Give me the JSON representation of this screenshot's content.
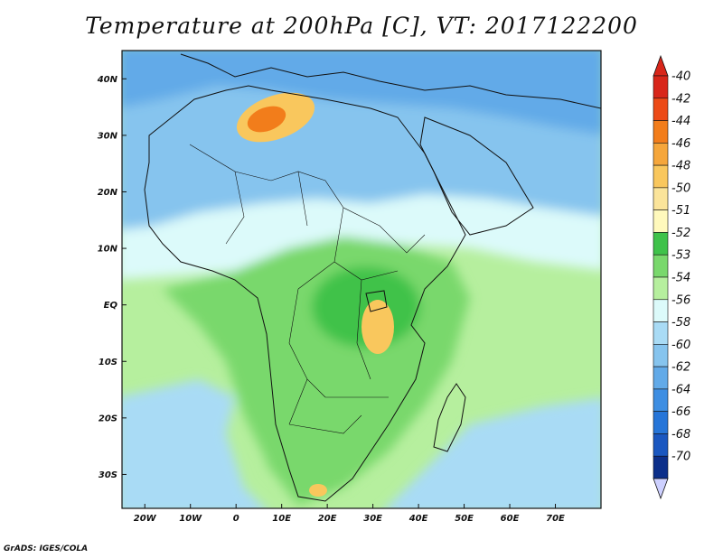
{
  "title": "Temperature at 200hPa [C], VT: 2017122200",
  "credit": "GrADS: IGES/COLA",
  "map": {
    "lon_range": [
      -25,
      80
    ],
    "lat_range": [
      -36,
      45
    ],
    "lat_ticks": [
      {
        "value": 40,
        "label": "40N"
      },
      {
        "value": 30,
        "label": "30N"
      },
      {
        "value": 20,
        "label": "20N"
      },
      {
        "value": 10,
        "label": "10N"
      },
      {
        "value": 0,
        "label": "EQ"
      },
      {
        "value": -10,
        "label": "10S"
      },
      {
        "value": -20,
        "label": "20S"
      },
      {
        "value": -30,
        "label": "30S"
      }
    ],
    "lon_ticks": [
      {
        "value": -20,
        "label": "20W"
      },
      {
        "value": -10,
        "label": "10W"
      },
      {
        "value": 0,
        "label": "0"
      },
      {
        "value": 10,
        "label": "10E"
      },
      {
        "value": 20,
        "label": "20E"
      },
      {
        "value": 30,
        "label": "30E"
      },
      {
        "value": 40,
        "label": "40E"
      },
      {
        "value": 50,
        "label": "50E"
      },
      {
        "value": 60,
        "label": "60E"
      },
      {
        "value": 70,
        "label": "70E"
      }
    ]
  },
  "colorbar": {
    "levels": [
      {
        "label": "-40",
        "color": "#d8261a"
      },
      {
        "label": "-42",
        "color": "#ec4a17"
      },
      {
        "label": "-44",
        "color": "#f27d1b"
      },
      {
        "label": "-46",
        "color": "#f5a63b"
      },
      {
        "label": "-48",
        "color": "#f9c75d"
      },
      {
        "label": "-50",
        "color": "#fbe49a"
      },
      {
        "label": "-51",
        "color": "#fff9bc"
      },
      {
        "label": "-52",
        "color": "#3fc24a"
      },
      {
        "label": "-53",
        "color": "#79d86c"
      },
      {
        "label": "-54",
        "color": "#b6ef9e"
      },
      {
        "label": "-56",
        "color": "#dcfafa"
      },
      {
        "label": "-58",
        "color": "#a9dbf5"
      },
      {
        "label": "-60",
        "color": "#86c4ee"
      },
      {
        "label": "-62",
        "color": "#62aae8"
      },
      {
        "label": "-64",
        "color": "#3e8ee2"
      },
      {
        "label": "-66",
        "color": "#2675d8"
      },
      {
        "label": "-68",
        "color": "#1a57c0"
      },
      {
        "label": "-70",
        "color": "#0c2f8a"
      }
    ],
    "top_arrow_color": "#d8261a",
    "bottom_arrow_color": "#cdd0ff"
  },
  "fields": {
    "ocean_color": "#b6ef9e",
    "north_cold_color": "#62aae8",
    "north_mid_color": "#86c4ee",
    "sahel_color": "#dcfafa",
    "central_color": "#79d86c",
    "core_color": "#3fc24a",
    "warm_color": "#f9c75d",
    "warm_core_color": "#f27d1b",
    "south_color": "#a9dbf5"
  }
}
